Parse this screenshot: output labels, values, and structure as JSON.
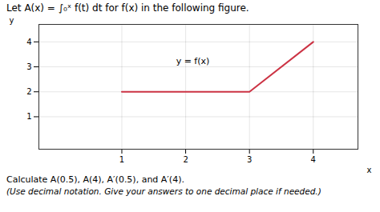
{
  "chart_data": {
    "type": "line",
    "title": "Let A(x) = ∫₀ˣ f(t) dt for f(x) in the following figure.",
    "caption": [
      "Calculate A(0.5), A(4), A′(0.5), and A′(4).",
      "(Use decimal notation. Give your answers to one decimal place if needed.)"
    ],
    "x_label": "x",
    "y_label": "y",
    "x": [
      1,
      3,
      4
    ],
    "values": [
      2,
      2,
      4
    ],
    "color": "#cc3344",
    "xlim": [
      -0.3,
      4.7
    ],
    "ylim": [
      -0.3,
      4.7
    ],
    "xticks": [
      1,
      2,
      3,
      4
    ],
    "yticks": [
      1,
      2,
      3,
      4
    ],
    "grid": true,
    "annotations": [
      {
        "text": "y = f(x)",
        "x": 1.85,
        "y": 3.1
      }
    ]
  }
}
